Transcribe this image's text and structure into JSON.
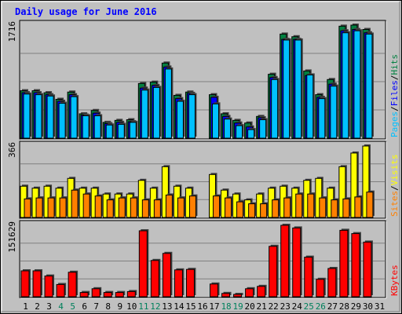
{
  "colors": {
    "background": "#c0c0c0",
    "plot_bg": "#c0c0c0",
    "title": "#0000ff",
    "hits": "#008040",
    "files": "#0000ff",
    "pages": "#00c0ff",
    "visits": "#ffff00",
    "sites": "#ff8000",
    "kbytes": "#ff0000",
    "weekend_label": "#00805c",
    "weekday_label": "#000000"
  },
  "chart_data": {
    "type": "bar",
    "title": "Daily usage for June 2016",
    "days": [
      "1",
      "2",
      "3",
      "4",
      "5",
      "6",
      "7",
      "8",
      "9",
      "10",
      "11",
      "12",
      "13",
      "14",
      "15",
      "16",
      "17",
      "18",
      "19",
      "20",
      "21",
      "22",
      "23",
      "24",
      "25",
      "26",
      "27",
      "28",
      "29",
      "30",
      "31"
    ],
    "weekend_days": [
      4,
      5,
      11,
      12,
      18,
      19,
      25,
      26
    ],
    "panels": [
      {
        "id": "hits-files-pages",
        "max_label": "1716",
        "ymax": 1716,
        "series": [
          {
            "name": "Hits",
            "values": [
              720,
              720,
              690,
              590,
              700,
              370,
              420,
              240,
              270,
              280,
              830,
              850,
              1140,
              650,
              700,
              0,
              660,
              370,
              270,
              230,
              330,
              970,
              1580,
              1540,
              1020,
              660,
              890,
              1700,
              1716,
              1650,
              0
            ]
          },
          {
            "name": "Files",
            "values": [
              690,
              690,
              660,
              560,
              660,
              350,
              380,
              220,
              240,
              250,
              760,
              800,
              1080,
              600,
              680,
              0,
              620,
              330,
              230,
              170,
              310,
              920,
              1500,
              1500,
              950,
              620,
              820,
              1630,
              1650,
              1600,
              0
            ]
          },
          {
            "name": "Pages",
            "values": [
              670,
              660,
              640,
              530,
              630,
              340,
              340,
              200,
              210,
              240,
              730,
              770,
              1050,
              560,
              660,
              0,
              520,
              290,
              190,
              130,
              280,
              890,
              1490,
              1490,
              960,
              600,
              790,
              1600,
              1630,
              1580,
              0
            ]
          }
        ]
      },
      {
        "id": "visits-sites",
        "max_label": "366",
        "ymax": 366,
        "series": [
          {
            "name": "Visits",
            "values": [
              160,
              150,
              160,
              150,
              200,
              150,
              150,
              120,
              120,
              120,
              190,
              150,
              260,
              160,
              150,
              0,
              220,
              140,
              120,
              90,
              120,
              150,
              160,
              150,
              190,
              200,
              150,
              260,
              330,
              366,
              0
            ]
          },
          {
            "name": "Sites",
            "values": [
              95,
              100,
              100,
              100,
              140,
              120,
              110,
              90,
              100,
              100,
              90,
              90,
              115,
              100,
              110,
              0,
              110,
              100,
              80,
              70,
              70,
              90,
              100,
              120,
              120,
              100,
              90,
              95,
              105,
              130,
              0
            ]
          }
        ]
      },
      {
        "id": "kbytes",
        "max_label": "151629",
        "ymax": 151629,
        "series": [
          {
            "name": "KBytes",
            "values": [
              55000,
              55000,
              44000,
              26000,
              52000,
              9000,
              17000,
              9000,
              9000,
              11000,
              140000,
              77000,
              92000,
              57000,
              58000,
              0,
              27000,
              7000,
              5000,
              17000,
              22000,
              107000,
              151629,
              146000,
              84000,
              37000,
              60000,
              141000,
              134000,
              116000,
              0
            ]
          }
        ]
      }
    ],
    "legend": [
      {
        "panel": "hits-files-pages",
        "parts": [
          "Pages",
          "Files",
          "Hits"
        ]
      },
      {
        "panel": "visits-sites",
        "parts": [
          "Sites",
          "Visits"
        ]
      },
      {
        "panel": "kbytes",
        "parts": [
          "KBytes"
        ]
      }
    ]
  }
}
